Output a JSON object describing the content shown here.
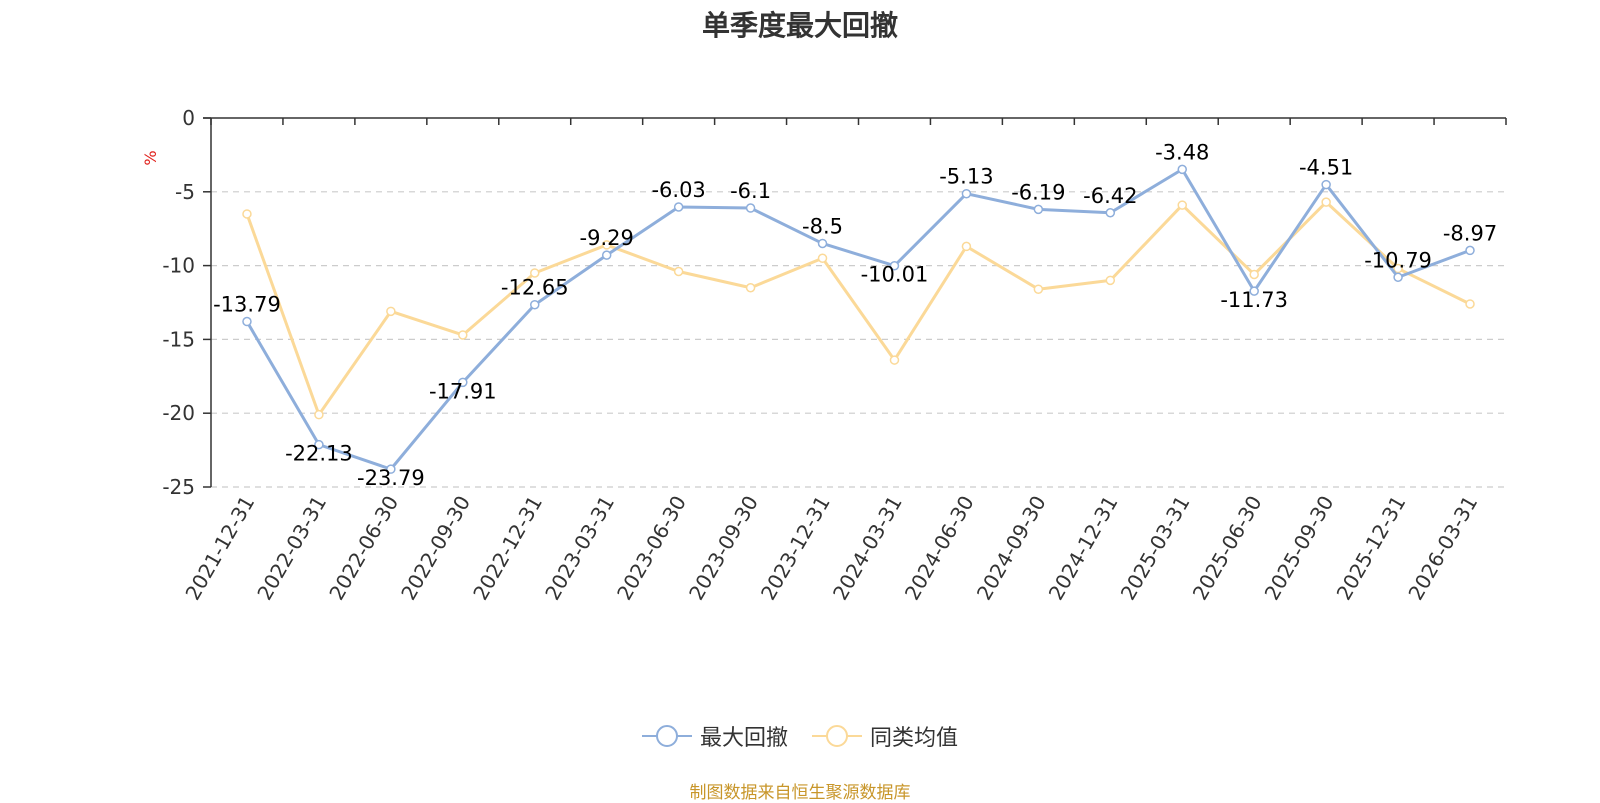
{
  "title": "单季度最大回撤",
  "source_note": "制图数据来自恒生聚源数据库",
  "chart_data": {
    "type": "line",
    "title": "单季度最大回撤",
    "ylabel": "%",
    "xlabel": "",
    "ylim": [
      -25,
      0
    ],
    "yticks": [
      "0",
      "-5",
      "-10",
      "-15",
      "-20",
      "-25"
    ],
    "ytick_values": [
      0,
      -5,
      -10,
      -15,
      -20,
      -25
    ],
    "grid": true,
    "legend_position": "bottom",
    "categories": [
      "2021-12-31",
      "2022-03-31",
      "2022-06-30",
      "2022-09-30",
      "2022-12-31",
      "2023-03-31",
      "2023-06-30",
      "2023-09-30",
      "2023-12-31",
      "2024-03-31",
      "2024-06-30",
      "2024-09-30",
      "2024-12-31",
      "2025-03-31",
      "2025-06-30",
      "2025-09-30",
      "2025-12-31",
      "2026-03-31"
    ],
    "series": [
      {
        "name": "最大回撤",
        "color": "#8eaedb",
        "values": [
          -13.79,
          -22.13,
          -23.79,
          -17.91,
          -12.65,
          -9.29,
          -6.03,
          -6.1,
          -8.5,
          -10.01,
          -5.13,
          -6.19,
          -6.42,
          -3.48,
          -11.73,
          -4.51,
          -10.79,
          -8.97
        ],
        "labels": [
          "-13.79",
          "-22.13",
          "-23.79",
          "-17.91",
          "-12.65",
          "-9.29",
          "-6.03",
          "-6.1",
          "-8.5",
          "-10.01",
          "-5.13",
          "-6.19",
          "-6.42",
          "-3.48",
          "-11.73",
          "-4.51",
          "-10.79",
          "-8.97"
        ]
      },
      {
        "name": "同类均值",
        "color": "#fbd998",
        "values": [
          -6.5,
          -20.1,
          -13.1,
          -14.7,
          -10.5,
          -8.6,
          -10.4,
          -11.5,
          -9.5,
          -16.4,
          -8.7,
          -11.6,
          -11.0,
          -5.9,
          -10.6,
          -5.7,
          -10.2,
          -12.6
        ]
      }
    ]
  }
}
